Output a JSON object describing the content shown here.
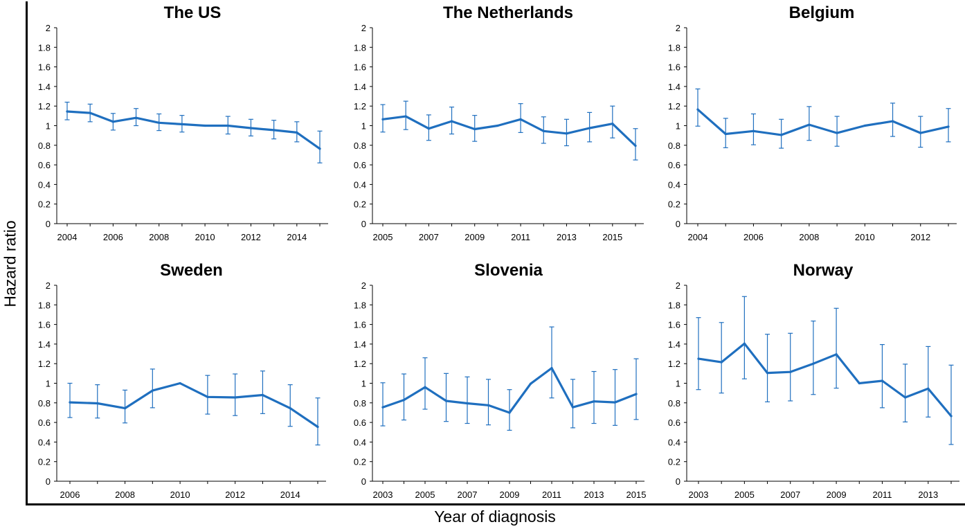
{
  "chart_data": {
    "type": "line",
    "ylabel": "Hazard ratio",
    "xlabel": "Year of diagnosis",
    "ylim": [
      0,
      2
    ],
    "yticks": [
      "0",
      "0.2",
      "0.4",
      "0.6",
      "0.8",
      "1",
      "1.2",
      "1.4",
      "1.6",
      "1.8",
      "2"
    ],
    "line_color": "#1f6fbf",
    "grid": false,
    "panels": [
      {
        "title": "The US",
        "x": [
          2004,
          2005,
          2006,
          2007,
          2008,
          2009,
          2010,
          2011,
          2012,
          2013,
          2014,
          2015
        ],
        "xticks": [
          "2004",
          "2006",
          "2008",
          "2010",
          "2012",
          "2014"
        ],
        "y": [
          1.145,
          1.13,
          1.04,
          1.08,
          1.03,
          1.015,
          1.0,
          1.0,
          0.975,
          0.955,
          0.93,
          0.765
        ],
        "lower": [
          1.06,
          1.04,
          0.955,
          1.0,
          0.95,
          0.935,
          1.0,
          0.915,
          0.895,
          0.865,
          0.835,
          0.62
        ],
        "upper": [
          1.24,
          1.22,
          1.125,
          1.175,
          1.12,
          1.105,
          1.0,
          1.095,
          1.065,
          1.055,
          1.04,
          0.945
        ]
      },
      {
        "title": "The Netherlands",
        "x": [
          2005,
          2006,
          2007,
          2008,
          2009,
          2010,
          2011,
          2012,
          2013,
          2014,
          2015,
          2016
        ],
        "xticks": [
          "2005",
          "2007",
          "2009",
          "2011",
          "2013",
          "2015"
        ],
        "y": [
          1.065,
          1.095,
          0.97,
          1.045,
          0.965,
          1.0,
          1.065,
          0.945,
          0.92,
          0.975,
          1.02,
          0.795
        ],
        "lower": [
          0.935,
          0.96,
          0.85,
          0.915,
          0.84,
          1.0,
          0.93,
          0.82,
          0.795,
          0.835,
          0.875,
          0.65
        ],
        "upper": [
          1.215,
          1.25,
          1.11,
          1.19,
          1.105,
          1.0,
          1.225,
          1.09,
          1.065,
          1.135,
          1.2,
          0.97
        ]
      },
      {
        "title": "Belgium",
        "x": [
          2004,
          2005,
          2006,
          2007,
          2008,
          2009,
          2010,
          2011,
          2012,
          2013
        ],
        "xticks": [
          "2004",
          "2006",
          "2008",
          "2010",
          "2012"
        ],
        "y": [
          1.165,
          0.915,
          0.945,
          0.905,
          1.01,
          0.925,
          1.0,
          1.045,
          0.925,
          0.99
        ],
        "lower": [
          0.995,
          0.775,
          0.805,
          0.77,
          0.85,
          0.79,
          1.0,
          0.89,
          0.78,
          0.835
        ],
        "upper": [
          1.375,
          1.075,
          1.12,
          1.065,
          1.195,
          1.095,
          1.0,
          1.23,
          1.095,
          1.175
        ]
      },
      {
        "title": "Sweden",
        "x": [
          2006,
          2007,
          2008,
          2009,
          2010,
          2011,
          2012,
          2013,
          2014,
          2015
        ],
        "xticks": [
          "2006",
          "2008",
          "2010",
          "2012",
          "2014"
        ],
        "y": [
          0.805,
          0.795,
          0.745,
          0.925,
          1.0,
          0.86,
          0.855,
          0.88,
          0.745,
          0.555
        ],
        "lower": [
          0.65,
          0.645,
          0.595,
          0.75,
          1.0,
          0.685,
          0.67,
          0.69,
          0.56,
          0.37
        ],
        "upper": [
          1.0,
          0.985,
          0.93,
          1.145,
          1.0,
          1.08,
          1.095,
          1.125,
          0.985,
          0.85
        ]
      },
      {
        "title": "Slovenia",
        "x": [
          2003,
          2004,
          2005,
          2006,
          2007,
          2008,
          2009,
          2010,
          2011,
          2012,
          2013,
          2014,
          2015
        ],
        "xticks": [
          "2003",
          "2005",
          "2007",
          "2009",
          "2011",
          "2013",
          "2015"
        ],
        "y": [
          0.755,
          0.83,
          0.96,
          0.82,
          0.795,
          0.775,
          0.7,
          0.995,
          1.155,
          0.755,
          0.815,
          0.805,
          0.89
        ],
        "lower": [
          0.565,
          0.625,
          0.735,
          0.61,
          0.59,
          0.575,
          0.52,
          0.995,
          0.85,
          0.545,
          0.59,
          0.57,
          0.63
        ],
        "upper": [
          1.005,
          1.095,
          1.26,
          1.1,
          1.065,
          1.04,
          0.935,
          0.995,
          1.575,
          1.04,
          1.12,
          1.14,
          1.25
        ]
      },
      {
        "title": "Norway",
        "x": [
          2003,
          2004,
          2005,
          2006,
          2007,
          2008,
          2009,
          2010,
          2011,
          2012,
          2013,
          2014
        ],
        "xticks": [
          "2003",
          "2005",
          "2007",
          "2009",
          "2011",
          "2013"
        ],
        "y": [
          1.25,
          1.215,
          1.405,
          1.105,
          1.115,
          1.2,
          1.295,
          1.0,
          1.025,
          0.855,
          0.945,
          0.665
        ],
        "lower": [
          0.935,
          0.9,
          1.045,
          0.81,
          0.82,
          0.885,
          0.95,
          1.0,
          0.75,
          0.605,
          0.655,
          0.375
        ],
        "upper": [
          1.67,
          1.62,
          1.885,
          1.5,
          1.51,
          1.635,
          1.765,
          1.0,
          1.395,
          1.195,
          1.375,
          1.185
        ]
      }
    ]
  }
}
